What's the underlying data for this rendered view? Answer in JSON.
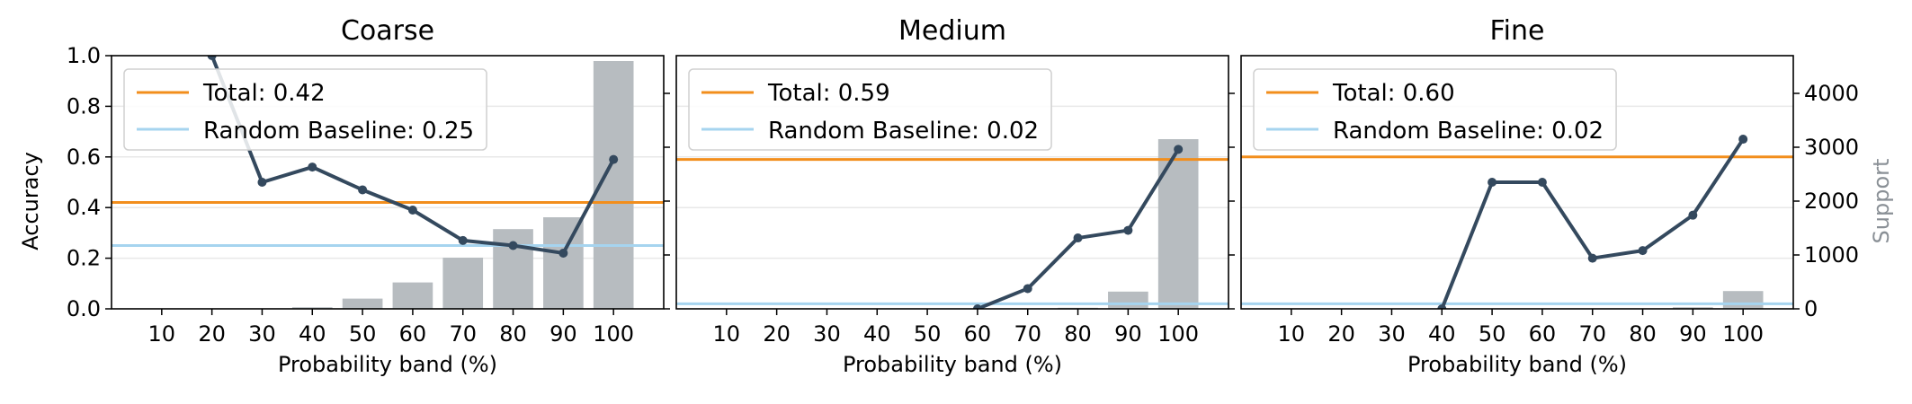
{
  "colors": {
    "bar": "#b7bcc0",
    "line": "#34495e",
    "total": "#f28e1c",
    "random": "#a6d4ef",
    "grid": "#e8e8e8",
    "support_label": "#8a9096"
  },
  "left_axis_label": "Accuracy",
  "right_axis_label": "Support",
  "chart_data": [
    {
      "type": "bar+line",
      "title": "Coarse",
      "xlabel": "Probability band (%)",
      "ylabel": "Accuracy",
      "y2label": "",
      "categories": [
        "10",
        "20",
        "30",
        "40",
        "50",
        "60",
        "70",
        "80",
        "90",
        "100"
      ],
      "ylim": [
        0,
        1.0
      ],
      "yticks": [
        "0.0",
        "0.2",
        "0.4",
        "0.6",
        "0.8",
        "1.0"
      ],
      "y2lim": [
        0,
        4700
      ],
      "y2ticks": [],
      "support": [
        0,
        0,
        0,
        30,
        190,
        490,
        950,
        1480,
        1700,
        4600
      ],
      "accuracy": [
        null,
        1.0,
        0.5,
        0.56,
        0.47,
        0.39,
        0.27,
        0.25,
        0.22,
        0.59
      ],
      "total": 0.42,
      "random": 0.25,
      "legend": [
        "Total: 0.42",
        "Random Baseline: 0.25"
      ],
      "legend_position": "upper-left",
      "grid": true
    },
    {
      "type": "bar+line",
      "title": "Medium",
      "xlabel": "Probability band (%)",
      "ylabel": "",
      "y2label": "",
      "categories": [
        "10",
        "20",
        "30",
        "40",
        "50",
        "60",
        "70",
        "80",
        "90",
        "100"
      ],
      "ylim": [
        0,
        1.0
      ],
      "yticks": [],
      "y2lim": [
        0,
        4700
      ],
      "y2ticks": [],
      "support": [
        0,
        0,
        0,
        0,
        0,
        0,
        0,
        20,
        320,
        3150
      ],
      "accuracy": [
        null,
        null,
        null,
        null,
        null,
        0.0,
        0.08,
        0.28,
        0.31,
        0.63
      ],
      "total": 0.59,
      "random": 0.02,
      "legend": [
        "Total: 0.59",
        "Random Baseline: 0.02"
      ],
      "legend_position": "upper-left",
      "grid": true
    },
    {
      "type": "bar+line",
      "title": "Fine",
      "xlabel": "Probability band (%)",
      "ylabel": "",
      "y2label": "Support",
      "categories": [
        "10",
        "20",
        "30",
        "40",
        "50",
        "60",
        "70",
        "80",
        "90",
        "100"
      ],
      "ylim": [
        0,
        1.0
      ],
      "yticks": [],
      "y2lim": [
        0,
        4700
      ],
      "y2ticks": [
        "0",
        "1000",
        "2000",
        "3000",
        "4000"
      ],
      "support": [
        0,
        0,
        0,
        0,
        0,
        0,
        0,
        0,
        30,
        330
      ],
      "accuracy": [
        null,
        null,
        null,
        0.0,
        0.5,
        0.5,
        0.2,
        0.23,
        0.37,
        0.67
      ],
      "total": 0.6,
      "random": 0.02,
      "legend": [
        "Total: 0.60",
        "Random Baseline: 0.02"
      ],
      "legend_position": "upper-left",
      "grid": true
    }
  ]
}
